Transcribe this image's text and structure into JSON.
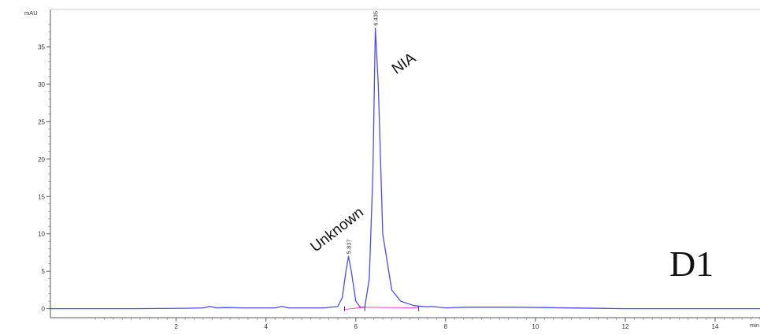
{
  "chart_data": {
    "type": "line",
    "title": "",
    "xlabel": "min",
    "ylabel": "mAU",
    "xlim": [
      -0.8,
      15.0
    ],
    "ylim": [
      -1.2,
      40.0
    ],
    "xticks": [
      2,
      4,
      6,
      8,
      10,
      12,
      14
    ],
    "yticks": [
      0,
      5,
      10,
      15,
      20,
      25,
      30,
      35
    ],
    "grid": false,
    "colors": {
      "signal": "#4a4aff",
      "baseline": "#ff3fd6"
    },
    "series": [
      {
        "x": [
          -0.8,
          1.0,
          2.2,
          2.6,
          2.75,
          2.9,
          3.1,
          3.5,
          4.2,
          4.35,
          4.5,
          5.3,
          5.6,
          5.7,
          5.78,
          5.837,
          5.9,
          6.0,
          6.1,
          6.2,
          6.3,
          6.38,
          6.435,
          6.5,
          6.6,
          6.8,
          7.0,
          7.3,
          7.6,
          7.7,
          8.0,
          8.5,
          9.5,
          12.0,
          15.0
        ],
        "y": [
          0.0,
          0.0,
          0.05,
          0.1,
          0.3,
          0.1,
          0.15,
          0.1,
          0.1,
          0.3,
          0.1,
          0.1,
          0.3,
          1.5,
          5.0,
          7.0,
          5.0,
          1.0,
          0.2,
          0.2,
          4.0,
          18.0,
          37.5,
          30.0,
          10.0,
          2.5,
          1.0,
          0.4,
          0.25,
          0.3,
          0.1,
          0.2,
          0.2,
          0.0,
          0.0
        ]
      },
      {
        "x": [
          5.75,
          6.2,
          7.4
        ],
        "y": [
          -0.1,
          0.2,
          0.1
        ]
      }
    ],
    "peak_labels": [
      {
        "x": 5.837,
        "y": 7.0,
        "text": "5.837"
      },
      {
        "x": 6.435,
        "y": 37.5,
        "text": "6.435"
      }
    ],
    "annotations": [
      {
        "text": "Unknown",
        "x": 5.1,
        "y": 7.5,
        "rotate": -38
      },
      {
        "text": "NIA",
        "x": 6.9,
        "y": 31.3,
        "rotate": -35
      }
    ],
    "panel_label": "D1"
  }
}
